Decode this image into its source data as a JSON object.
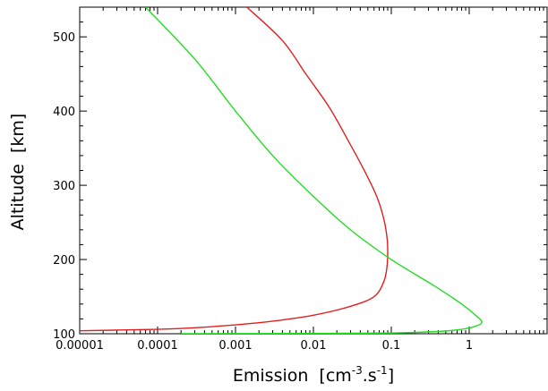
{
  "chart_data": {
    "type": "line",
    "xscale": "log",
    "xlim": [
      1e-05,
      10
    ],
    "ylim": [
      100,
      540
    ],
    "grid": false,
    "legend": "none",
    "xlabel_main": "Emission",
    "xlabel_units": {
      "open": "[cm",
      "exp1": "-3",
      "mid": ".s",
      "exp2": "-1",
      "close": "]"
    },
    "ylabel": "Altitude  [km]",
    "x_ticks": [
      {
        "value": 1e-05,
        "label": "0.00001"
      },
      {
        "value": 0.0001,
        "label": "0.0001"
      },
      {
        "value": 0.001,
        "label": "0.001"
      },
      {
        "value": 0.01,
        "label": "0.01"
      },
      {
        "value": 0.1,
        "label": "0.1"
      },
      {
        "value": 1,
        "label": "1"
      }
    ],
    "y_ticks": [
      {
        "value": 100,
        "label": "100"
      },
      {
        "value": 200,
        "label": "200"
      },
      {
        "value": 300,
        "label": "300"
      },
      {
        "value": 400,
        "label": "400"
      },
      {
        "value": 500,
        "label": "500"
      }
    ],
    "series": [
      {
        "color": "#e02020",
        "points": [
          [
            1e-05,
            104
          ],
          [
            0.0001,
            106
          ],
          [
            0.0003,
            108
          ],
          [
            0.001,
            112
          ],
          [
            0.003,
            117
          ],
          [
            0.01,
            125
          ],
          [
            0.03,
            137
          ],
          [
            0.06,
            150
          ],
          [
            0.08,
            170
          ],
          [
            0.088,
            190
          ],
          [
            0.09,
            210
          ],
          [
            0.088,
            230
          ],
          [
            0.08,
            255
          ],
          [
            0.065,
            285
          ],
          [
            0.045,
            320
          ],
          [
            0.028,
            360
          ],
          [
            0.016,
            405
          ],
          [
            0.008,
            450
          ],
          [
            0.004,
            495
          ],
          [
            0.0014,
            540
          ]
        ]
      },
      {
        "color": "#22dd22",
        "points": [
          [
            0.0002,
            100
          ],
          [
            0.01,
            100.5
          ],
          [
            0.1,
            101
          ],
          [
            0.4,
            103
          ],
          [
            0.8,
            106
          ],
          [
            1.2,
            110
          ],
          [
            1.45,
            115
          ],
          [
            1.3,
            122
          ],
          [
            0.8,
            140
          ],
          [
            0.35,
            165
          ],
          [
            0.1,
            200
          ],
          [
            0.03,
            240
          ],
          [
            0.01,
            285
          ],
          [
            0.003,
            340
          ],
          [
            0.001,
            400
          ],
          [
            0.0003,
            470
          ],
          [
            7e-05,
            540
          ]
        ]
      }
    ]
  }
}
